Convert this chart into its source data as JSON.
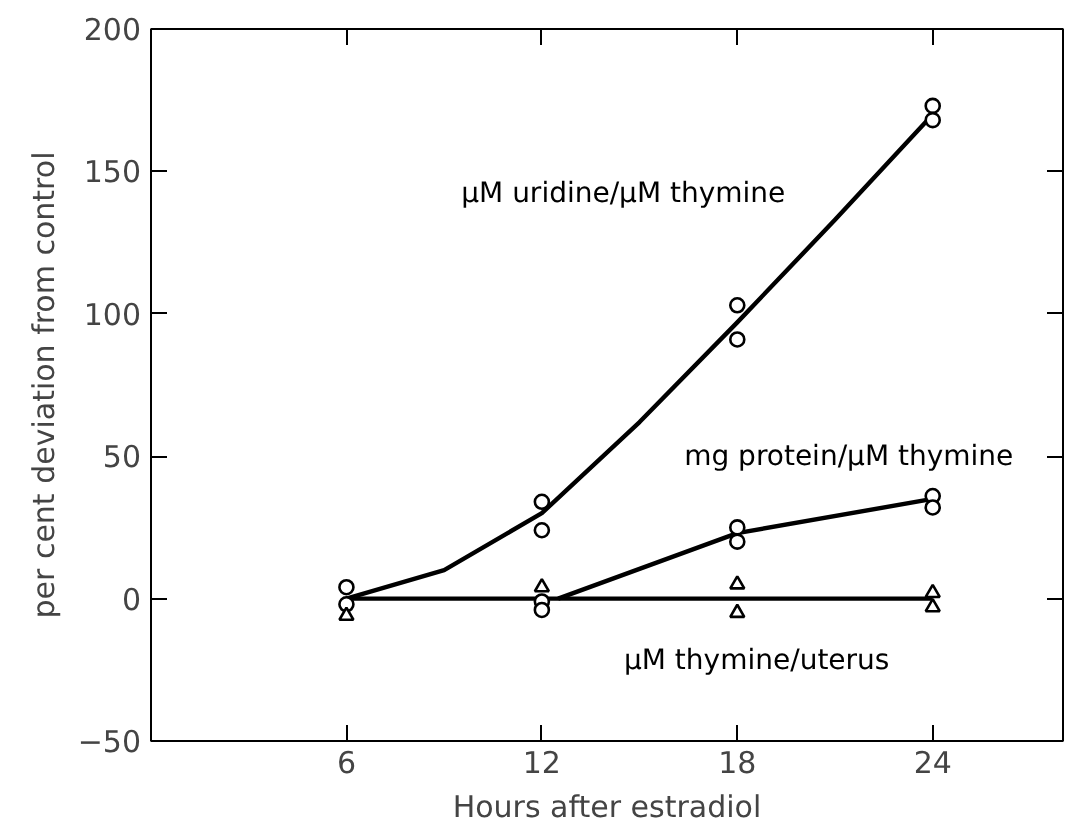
{
  "chart_data": {
    "type": "scatter",
    "xlabel": "Hours after estradiol",
    "ylabel": "per cent deviation from control",
    "xlim": [
      0,
      28
    ],
    "ylim": [
      -50,
      200
    ],
    "xticks": [
      6,
      12,
      18,
      24
    ],
    "yticks": [
      -50,
      0,
      50,
      100,
      150,
      200
    ],
    "grid": false,
    "series": [
      {
        "type": "line",
        "name": "μM uridine/μM thymine",
        "color": "#000000",
        "x": [
          6,
          9,
          12,
          15,
          18,
          21,
          24
        ],
        "values": [
          0,
          10,
          30,
          62,
          97,
          133,
          170
        ]
      },
      {
        "type": "line",
        "name": "mg protein/μM thymine",
        "color": "#000000",
        "x": [
          12.5,
          18,
          24
        ],
        "values": [
          0,
          23,
          35
        ]
      },
      {
        "type": "line",
        "name": "μM thymine/uterus",
        "color": "#000000",
        "x": [
          6,
          24
        ],
        "values": [
          0,
          0
        ]
      },
      {
        "marker": "circle",
        "color": "#000000",
        "x": [
          6,
          12,
          12,
          18,
          18,
          24,
          24
        ],
        "values": [
          4,
          34,
          24,
          103,
          91,
          173,
          168
        ]
      },
      {
        "marker": "circle",
        "color": "#000000",
        "x": [
          6,
          12,
          12,
          18,
          18,
          24,
          24
        ],
        "values": [
          -2,
          -1,
          -4,
          25,
          20,
          36,
          32
        ]
      },
      {
        "marker": "triangle",
        "color": "#000000",
        "x": [
          6,
          12,
          18,
          18,
          24,
          24
        ],
        "values": [
          -6,
          4,
          5,
          -5,
          2,
          -3
        ]
      }
    ]
  }
}
